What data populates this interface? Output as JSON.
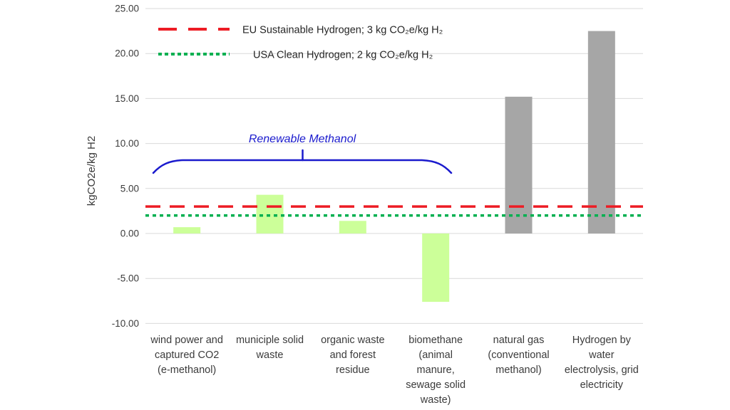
{
  "chart_data": {
    "type": "bar",
    "title": "",
    "ylabel": "kgCO2e/kg H2",
    "xlabel": "",
    "ylim": [
      -10,
      25
    ],
    "grid": true,
    "legend_position": "top-left-inside",
    "yticks": [
      {
        "label": "25.00",
        "value": 25
      },
      {
        "label": "20.00",
        "value": 20
      },
      {
        "label": "15.00",
        "value": 15
      },
      {
        "label": "10.00",
        "value": 10
      },
      {
        "label": "5.00",
        "value": 5
      },
      {
        "label": "0.00",
        "value": 0
      },
      {
        "label": "-5.00",
        "value": -5
      },
      {
        "label": "-10.00",
        "value": -10
      }
    ],
    "categories": [
      "wind power and\ncaptured CO2\n(e-methanol)",
      "municiple solid\nwaste",
      "organic waste\nand forest\nresidue",
      "biomethane\n(animal\nmanure,\nsewage solid\nwaste)",
      "natural gas\n(conventional\nmethanol)",
      "Hydrogen by\nwater\nelectrolysis, grid\nelectricity"
    ],
    "values": [
      0.7,
      4.3,
      1.4,
      -7.6,
      15.2,
      22.5
    ],
    "bar_color_keys": [
      "renewable",
      "renewable",
      "renewable",
      "renewable",
      "fossil",
      "fossil"
    ],
    "colors": {
      "renewable": "#CCFF99",
      "fossil": "#A6A6A6",
      "eu_line": "#ED1C24",
      "usa_line": "#00B050",
      "annotation": "#1A1ACD",
      "gridline": "#D9D9D9",
      "text": "#3b3b3b"
    },
    "reference_lines": [
      {
        "name": "eu",
        "label": "EU Sustainable Hydrogen; 3 kg CO₂e/kg H₂",
        "value": 3,
        "color_key": "eu_line",
        "style": "dashed"
      },
      {
        "name": "usa",
        "label": "USA Clean Hydrogen; 2 kg CO₂e/kg H₂",
        "value": 2,
        "color_key": "usa_line",
        "style": "dotted"
      }
    ],
    "annotation": {
      "label": "Renewable Methanol",
      "span_categories": [
        0,
        3
      ]
    }
  }
}
